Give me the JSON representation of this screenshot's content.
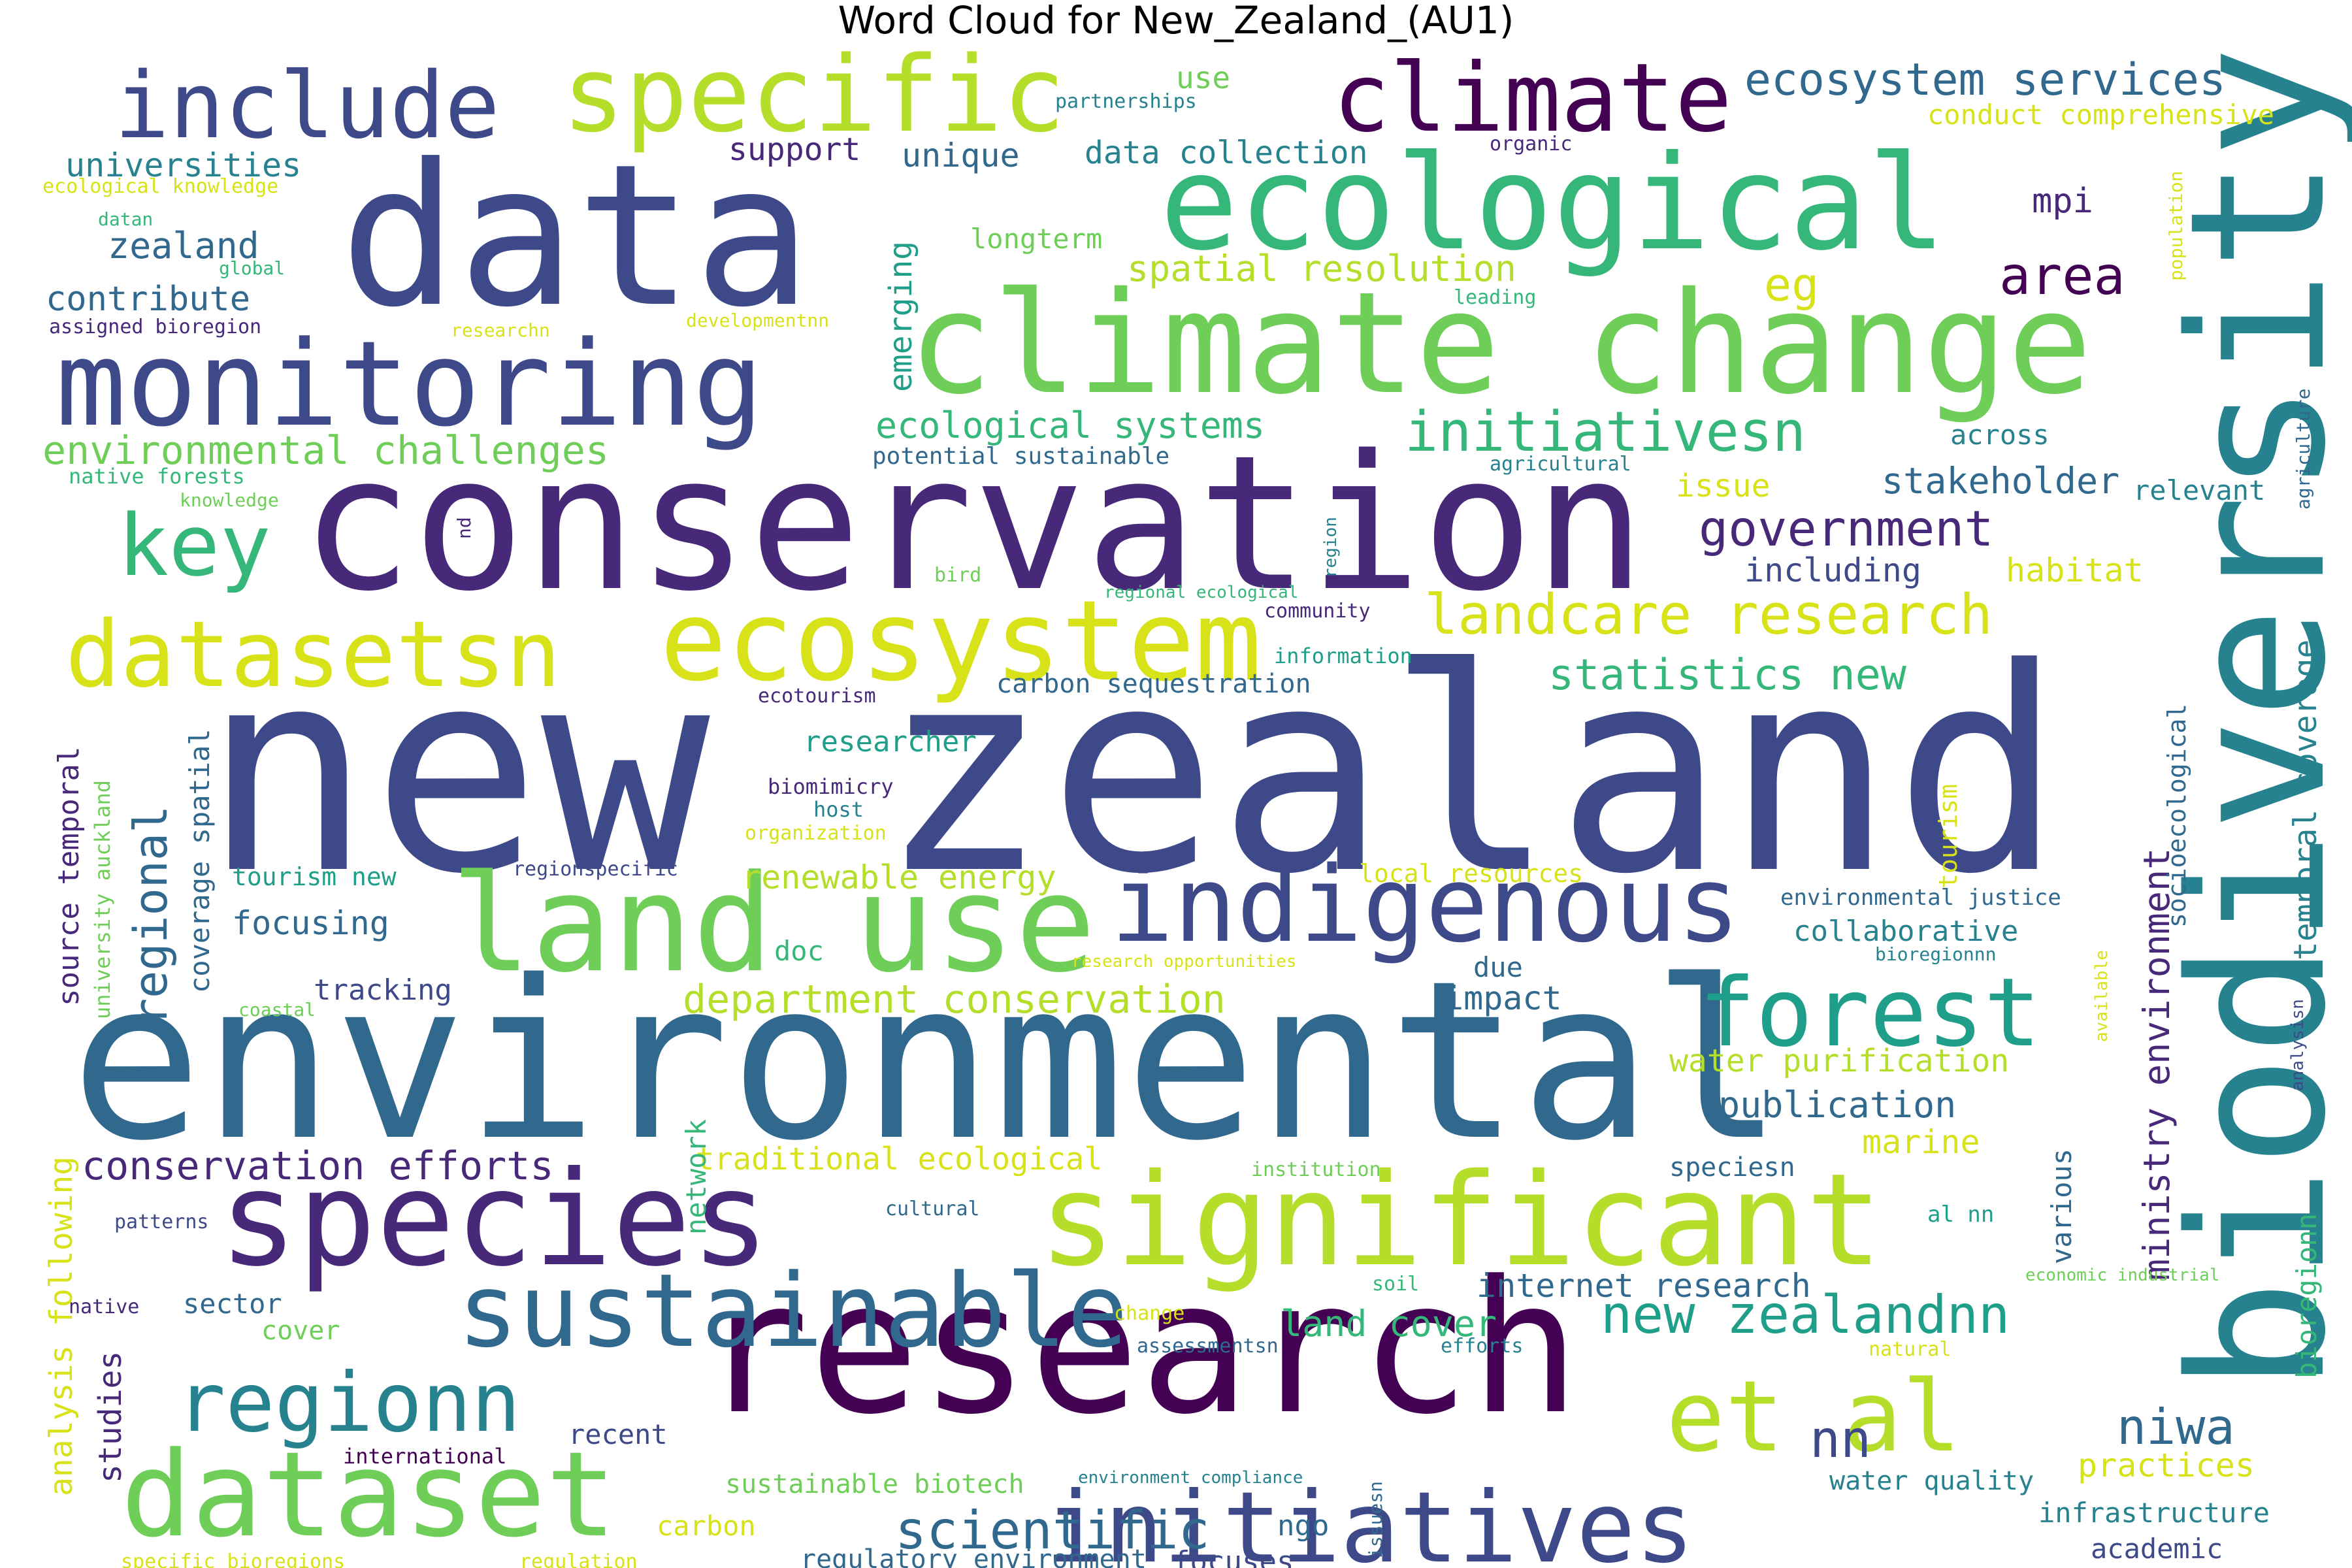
{
  "title": "Word Cloud for New_Zealand_(AU1)",
  "palette": [
    "#440154",
    "#482878",
    "#3e4989",
    "#31688e",
    "#26828e",
    "#1f9e89",
    "#35b779",
    "#6ece58",
    "#b5de2b",
    "#fde725"
  ],
  "words": [
    {
      "text": "new zealand",
      "weight": 1.0,
      "color": "#3e4989"
    },
    {
      "text": "environmental",
      "weight": 0.86,
      "color": "#31688e"
    },
    {
      "text": "conservation",
      "weight": 0.74,
      "color": "#482878"
    },
    {
      "text": "research",
      "weight": 0.7,
      "color": "#440154"
    },
    {
      "text": "biodiversity",
      "weight": 0.68,
      "color": "#26828e"
    },
    {
      "text": "data",
      "weight": 0.66,
      "color": "#3e4989"
    },
    {
      "text": "climate change",
      "weight": 0.55,
      "color": "#6ece58"
    },
    {
      "text": "ecological",
      "weight": 0.5,
      "color": "#35b779"
    },
    {
      "text": "significant",
      "weight": 0.48,
      "color": "#b5de2b"
    },
    {
      "text": "species",
      "weight": 0.48,
      "color": "#482878"
    },
    {
      "text": "land use",
      "weight": 0.47,
      "color": "#6ece58"
    },
    {
      "text": "monitoring",
      "weight": 0.44,
      "color": "#3e4989"
    },
    {
      "text": "dataset",
      "weight": 0.4,
      "color": "#6ece58"
    },
    {
      "text": "ecosystem",
      "weight": 0.38,
      "color": "#d8e219"
    },
    {
      "text": "indigenous",
      "weight": 0.36,
      "color": "#3e4989"
    },
    {
      "text": "specific",
      "weight": 0.36,
      "color": "#b5de2b"
    },
    {
      "text": "sustainable",
      "weight": 0.35,
      "color": "#31688e"
    },
    {
      "text": "initiatives",
      "weight": 0.34,
      "color": "#3e4989"
    },
    {
      "text": "include",
      "weight": 0.33,
      "color": "#3e4989"
    },
    {
      "text": "climate",
      "weight": 0.32,
      "color": "#440154"
    },
    {
      "text": "datasetsn",
      "weight": 0.31,
      "color": "#d8e219"
    },
    {
      "text": "forest",
      "weight": 0.3,
      "color": "#1f9e89"
    },
    {
      "text": "et al",
      "weight": 0.3,
      "color": "#b5de2b"
    },
    {
      "text": "regionn",
      "weight": 0.28,
      "color": "#26828e"
    },
    {
      "text": "key",
      "weight": 0.26,
      "color": "#35b779"
    },
    {
      "text": "new zealandnn",
      "weight": 0.18,
      "color": "#1f9e89"
    },
    {
      "text": "scientific",
      "weight": 0.18,
      "color": "#31688e"
    },
    {
      "text": "landcare research",
      "weight": 0.17,
      "color": "#d8e219"
    },
    {
      "text": "initiativesn",
      "weight": 0.16,
      "color": "#35b779"
    },
    {
      "text": "area",
      "weight": 0.15,
      "color": "#440154"
    },
    {
      "text": "government",
      "weight": 0.14,
      "color": "#482878"
    },
    {
      "text": "regional",
      "weight": 0.14,
      "color": "#31688e"
    },
    {
      "text": "ecosystem services",
      "weight": 0.13,
      "color": "#31688e"
    },
    {
      "text": "niwa",
      "weight": 0.13,
      "color": "#31688e"
    },
    {
      "text": "nn",
      "weight": 0.13,
      "color": "#3e4989"
    },
    {
      "text": "statistics new",
      "weight": 0.12,
      "color": "#35b779"
    },
    {
      "text": "ministry environment",
      "weight": 0.12,
      "color": "#482878"
    },
    {
      "text": "eg",
      "weight": 0.11,
      "color": "#d8e219"
    },
    {
      "text": "environmental challenges",
      "weight": 0.11,
      "color": "#6ece58"
    },
    {
      "text": "department conservation",
      "weight": 0.11,
      "color": "#b5de2b"
    },
    {
      "text": "conservation efforts",
      "weight": 0.11,
      "color": "#482878"
    },
    {
      "text": "spatial resolution",
      "weight": 0.1,
      "color": "#b5de2b"
    },
    {
      "text": "ecological systems",
      "weight": 0.1,
      "color": "#35b779"
    },
    {
      "text": "stakeholder",
      "weight": 0.1,
      "color": "#31688e"
    },
    {
      "text": "land cover",
      "weight": 0.1,
      "color": "#35b779"
    },
    {
      "text": "publication",
      "weight": 0.1,
      "color": "#31688e"
    },
    {
      "text": "internet research",
      "weight": 0.1,
      "color": "#31688e"
    },
    {
      "text": "temporal coverage",
      "weight": 0.1,
      "color": "#26828e"
    },
    {
      "text": "emerging",
      "weight": 0.1,
      "color": "#1f9e89"
    },
    {
      "text": "renewable energy",
      "weight": 0.09,
      "color": "#b5de2b"
    },
    {
      "text": "focusing",
      "weight": 0.09,
      "color": "#31688e"
    },
    {
      "text": "habitat",
      "weight": 0.09,
      "color": "#d8e219"
    },
    {
      "text": "practices",
      "weight": 0.09,
      "color": "#d8e219"
    },
    {
      "text": "unique",
      "weight": 0.09,
      "color": "#31688e"
    },
    {
      "text": "water purification",
      "weight": 0.09,
      "color": "#b5de2b"
    },
    {
      "text": "impact",
      "weight": 0.09,
      "color": "#31688e"
    },
    {
      "text": "marine",
      "weight": 0.09,
      "color": "#d8e219"
    },
    {
      "text": "traditional ecological",
      "weight": 0.09,
      "color": "#d8e219"
    },
    {
      "text": "studies",
      "weight": 0.09,
      "color": "#482878"
    },
    {
      "text": "zealand",
      "weight": 0.09,
      "color": "#31688e"
    },
    {
      "text": "contribute",
      "weight": 0.09,
      "color": "#31688e"
    },
    {
      "text": "universities",
      "weight": 0.09,
      "color": "#26828e"
    },
    {
      "text": "mpi",
      "weight": 0.09,
      "color": "#482878"
    },
    {
      "text": "data collection",
      "weight": 0.08,
      "color": "#26828e"
    },
    {
      "text": "support",
      "weight": 0.08,
      "color": "#482878"
    },
    {
      "text": "issue",
      "weight": 0.08,
      "color": "#d8e219"
    },
    {
      "text": "including",
      "weight": 0.08,
      "color": "#3e4989"
    },
    {
      "text": "longterm",
      "weight": 0.08,
      "color": "#6ece58"
    },
    {
      "text": "conduct comprehensive",
      "weight": 0.08,
      "color": "#d8e219"
    },
    {
      "text": "coverage spatial",
      "weight": 0.08,
      "color": "#31688e"
    },
    {
      "text": "source temporal",
      "weight": 0.08,
      "color": "#482878"
    },
    {
      "text": "tracking",
      "weight": 0.08,
      "color": "#3e4989"
    },
    {
      "text": "researcher",
      "weight": 0.08,
      "color": "#1f9e89"
    },
    {
      "text": "carbon sequestration",
      "weight": 0.07,
      "color": "#31688e"
    },
    {
      "text": "collaborative",
      "weight": 0.08,
      "color": "#26828e"
    },
    {
      "text": "infrastructure",
      "weight": 0.08,
      "color": "#26828e"
    },
    {
      "text": "regulatory environment",
      "weight": 0.07,
      "color": "#31688e"
    },
    {
      "text": "focuses",
      "weight": 0.08,
      "color": "#3e4989"
    },
    {
      "text": "sustainable biotech",
      "weight": 0.07,
      "color": "#6ece58"
    },
    {
      "text": "academic",
      "weight": 0.07,
      "color": "#3e4989"
    },
    {
      "text": "water quality",
      "weight": 0.07,
      "color": "#26828e"
    },
    {
      "text": "sector",
      "weight": 0.07,
      "color": "#31688e"
    },
    {
      "text": "cover",
      "weight": 0.07,
      "color": "#6ece58"
    },
    {
      "text": "recent",
      "weight": 0.07,
      "color": "#3e4989"
    },
    {
      "text": "carbon",
      "weight": 0.07,
      "color": "#d8e219"
    },
    {
      "text": "speciesn",
      "weight": 0.07,
      "color": "#31688e"
    },
    {
      "text": "across",
      "weight": 0.07,
      "color": "#26828e"
    },
    {
      "text": "relevant",
      "weight": 0.07,
      "color": "#26828e"
    },
    {
      "text": "use",
      "weight": 0.07,
      "color": "#6ece58"
    },
    {
      "text": "doc",
      "weight": 0.07,
      "color": "#35b779"
    },
    {
      "text": "due",
      "weight": 0.07,
      "color": "#31688e"
    },
    {
      "text": "ngo",
      "weight": 0.07,
      "color": "#31688e"
    },
    {
      "text": "network",
      "weight": 0.07,
      "color": "#35b779"
    },
    {
      "text": "analysis following",
      "weight": 0.07,
      "color": "#d8e219"
    },
    {
      "text": "various",
      "weight": 0.07,
      "color": "#31688e"
    },
    {
      "text": "bioregionn",
      "weight": 0.07,
      "color": "#35b779"
    },
    {
      "text": "socioecological",
      "weight": 0.06,
      "color": "#31688e"
    },
    {
      "text": "local resources",
      "weight": 0.06,
      "color": "#d8e219"
    },
    {
      "text": "tourism new",
      "weight": 0.06,
      "color": "#1f9e89"
    },
    {
      "text": "ecological knowledge",
      "weight": 0.05,
      "color": "#d8e219"
    },
    {
      "text": "native forests",
      "weight": 0.05,
      "color": "#35b779"
    },
    {
      "text": "potential sustainable",
      "weight": 0.05,
      "color": "#31688e"
    },
    {
      "text": "environmental justice",
      "weight": 0.05,
      "color": "#31688e"
    },
    {
      "text": "university auckland",
      "weight": 0.05,
      "color": "#6ece58"
    },
    {
      "text": "tourism",
      "weight": 0.05,
      "color": "#d8e219"
    },
    {
      "text": "al nn",
      "weight": 0.05,
      "color": "#1f9e89"
    },
    {
      "text": "internationaI",
      "weight": 0.0,
      "color": "#440154"
    },
    {
      "text": "international",
      "weight": 0.05,
      "color": "#440154"
    },
    {
      "text": "assigned bioregion",
      "weight": 0.05,
      "color": "#482878"
    },
    {
      "text": "partnerships",
      "weight": 0.05,
      "color": "#26828e"
    },
    {
      "text": "organic",
      "weight": 0.05,
      "color": "#482878"
    },
    {
      "text": "datan",
      "weight": 0.04,
      "color": "#35b779"
    },
    {
      "text": "global",
      "weight": 0.04,
      "color": "#35b779"
    },
    {
      "text": "researchn",
      "weight": 0.04,
      "color": "#d8e219"
    },
    {
      "text": "developmentnn",
      "weight": 0.04,
      "color": "#d8e219"
    },
    {
      "text": "leading",
      "weight": 0.04,
      "color": "#35b779"
    },
    {
      "text": "population",
      "weight": 0.04,
      "color": "#d8e219"
    },
    {
      "text": "agriculture",
      "weight": 0.04,
      "color": "#31688e"
    },
    {
      "text": "agricultural",
      "weight": 0.04,
      "color": "#26828e"
    },
    {
      "text": "knowledge",
      "weight": 0.04,
      "color": "#6ece58"
    },
    {
      "text": "nd",
      "weight": 0.04,
      "color": "#482878"
    },
    {
      "text": "bird",
      "weight": 0.04,
      "color": "#6ece58"
    },
    {
      "text": "regional ecological",
      "weight": 0.04,
      "color": "#35b779"
    },
    {
      "text": "region",
      "weight": 0.04,
      "color": "#26828e"
    },
    {
      "text": "community",
      "weight": 0.05,
      "color": "#482878"
    },
    {
      "text": "information",
      "weight": 0.05,
      "color": "#1f9e89"
    },
    {
      "text": "ecotourism",
      "weight": 0.05,
      "color": "#482878"
    },
    {
      "text": "biomimicry",
      "weight": 0.05,
      "color": "#482878"
    },
    {
      "text": "host",
      "weight": 0.05,
      "color": "#26828e"
    },
    {
      "text": "organization",
      "weight": 0.05,
      "color": "#d8e219"
    },
    {
      "text": "regionspecific",
      "weight": 0.05,
      "color": "#3e4989"
    },
    {
      "text": "coastal",
      "weight": 0.04,
      "color": "#6ece58"
    },
    {
      "text": "research opportunities",
      "weight": 0.04,
      "color": "#d8e219"
    },
    {
      "text": "bioregionnn",
      "weight": 0.04,
      "color": "#26828e"
    },
    {
      "text": "available",
      "weight": 0.04,
      "color": "#d8e219"
    },
    {
      "text": "analysisn",
      "weight": 0.04,
      "color": "#3e4989"
    },
    {
      "text": "institution",
      "weight": 0.04,
      "color": "#6ece58"
    },
    {
      "text": "cultural",
      "weight": 0.04,
      "color": "#31688e"
    },
    {
      "text": "patterns",
      "weight": 0.04,
      "color": "#3e4989"
    },
    {
      "text": "native",
      "weight": 0.04,
      "color": "#482878"
    },
    {
      "text": "soil",
      "weight": 0.04,
      "color": "#35b779"
    },
    {
      "text": "economic industrial",
      "weight": 0.04,
      "color": "#6ece58"
    },
    {
      "text": "change",
      "weight": 0.04,
      "color": "#d8e219"
    },
    {
      "text": "assessmentsn",
      "weight": 0.04,
      "color": "#31688e"
    },
    {
      "text": "efforts",
      "weight": 0.04,
      "color": "#26828e"
    },
    {
      "text": "natural",
      "weight": 0.04,
      "color": "#d8e219"
    },
    {
      "text": "environment compliance",
      "weight": 0.04,
      "color": "#26828e"
    },
    {
      "text": "issuesn",
      "weight": 0.04,
      "color": "#31688e"
    },
    {
      "text": "specific bioregions",
      "weight": 0.04,
      "color": "#d8e219"
    },
    {
      "text": "regulation",
      "weight": 0.04,
      "color": "#d8e219"
    }
  ]
}
